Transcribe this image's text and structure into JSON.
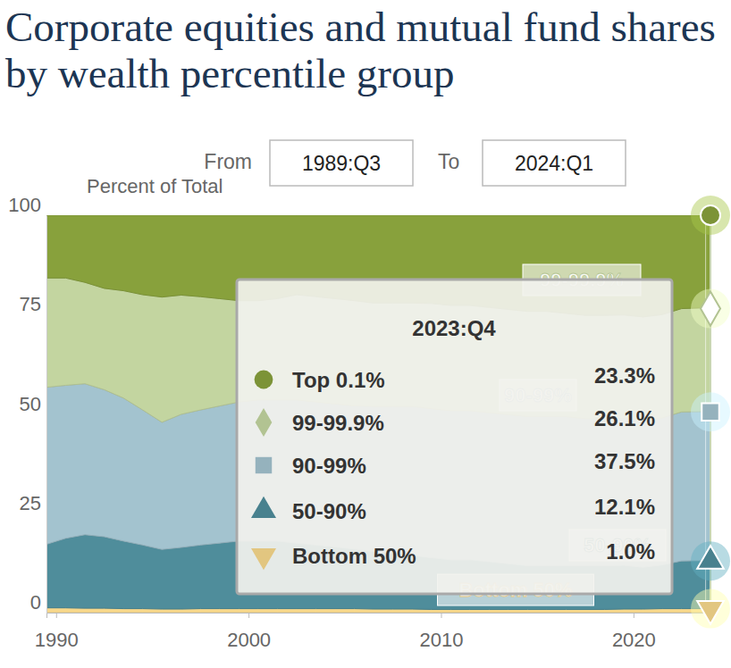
{
  "chart_data": {
    "type": "area",
    "title": "Corporate equities and mutual fund shares by wealth percentile group",
    "y_label": "Percent of Total",
    "from_label": "From",
    "from_value": "1989:Q3",
    "to_label": "To",
    "to_value": "2024:Q1",
    "stacked": true,
    "grid": false,
    "x": [
      1989.5,
      1990.5,
      1991.5,
      1992.5,
      1993.5,
      1994.5,
      1995.5,
      1996.5,
      1997.5,
      1998.5,
      1999.5,
      2000.5,
      2001.5,
      2002.5,
      2003.5,
      2004.5,
      2005.5,
      2006.5,
      2007.5,
      2008.5,
      2009.5,
      2010.5,
      2011.5,
      2012.5,
      2013.5,
      2014.5,
      2015.5,
      2016.5,
      2017.5,
      2018.5,
      2019.5,
      2020.5,
      2021.5,
      2022.5,
      2023.75,
      2024.0
    ],
    "xlim": [
      1989.5,
      2024.0
    ],
    "xticks": [
      1990,
      2000,
      2010,
      2020
    ],
    "ylim": [
      0,
      100
    ],
    "yticks": [
      0,
      25,
      50,
      75,
      100
    ],
    "series": [
      {
        "name": "Bottom 50%",
        "color": "#f7d88c",
        "marker": "triangle-down",
        "values": [
          1.2,
          1.2,
          1.1,
          1.1,
          1.0,
          1.0,
          0.9,
          0.9,
          1.0,
          1.0,
          1.0,
          1.0,
          1.0,
          1.0,
          1.0,
          1.0,
          1.0,
          0.9,
          0.9,
          0.9,
          0.8,
          0.8,
          0.8,
          0.8,
          0.8,
          0.8,
          0.8,
          0.8,
          0.8,
          0.8,
          0.9,
          0.9,
          1.0,
          1.0,
          1.0,
          1.0
        ]
      },
      {
        "name": "50-90%",
        "color": "#4f8d9b",
        "marker": "triangle-up",
        "values": [
          16.0,
          17.5,
          18.5,
          18.0,
          17.0,
          16.0,
          15.0,
          15.5,
          16.0,
          16.5,
          17.0,
          17.0,
          17.0,
          16.5,
          16.0,
          15.5,
          15.0,
          14.5,
          14.0,
          13.5,
          13.0,
          12.5,
          12.5,
          12.0,
          11.5,
          11.0,
          11.0,
          11.0,
          11.0,
          11.0,
          11.0,
          10.5,
          11.0,
          12.0,
          12.1,
          12.0
        ]
      },
      {
        "name": "90-99%",
        "color": "#a3c3cf",
        "marker": "square",
        "values": [
          39.5,
          38.5,
          38.0,
          37.0,
          36.0,
          34.0,
          32.0,
          33.5,
          34.0,
          34.5,
          35.0,
          35.5,
          35.5,
          36.0,
          36.0,
          36.0,
          36.0,
          36.5,
          37.0,
          37.5,
          37.5,
          37.5,
          37.5,
          37.5,
          37.5,
          37.5,
          37.5,
          37.5,
          37.0,
          37.0,
          37.0,
          37.0,
          37.0,
          37.5,
          37.5,
          37.5
        ]
      },
      {
        "name": "99-99.9%",
        "color": "#c3d5a0",
        "marker": "diamond",
        "values": [
          27.5,
          27.0,
          25.5,
          25.5,
          27.0,
          29.0,
          31.5,
          30.0,
          28.5,
          27.0,
          25.5,
          25.0,
          25.5,
          26.5,
          26.5,
          26.5,
          26.5,
          26.0,
          26.0,
          26.0,
          26.5,
          26.5,
          26.5,
          26.5,
          26.5,
          26.5,
          26.5,
          26.0,
          26.0,
          26.0,
          26.0,
          26.0,
          26.0,
          26.0,
          26.1,
          26.0
        ]
      },
      {
        "name": "Top 0.1%",
        "color": "#88a13c",
        "marker": "circle",
        "values": [
          15.8,
          15.8,
          16.9,
          18.4,
          19.0,
          20.0,
          20.6,
          20.1,
          20.5,
          21.0,
          21.5,
          21.5,
          21.0,
          20.0,
          20.5,
          21.0,
          21.5,
          22.1,
          22.1,
          22.1,
          22.2,
          22.7,
          22.7,
          23.2,
          23.7,
          24.2,
          24.2,
          24.7,
          25.2,
          25.2,
          25.1,
          25.6,
          25.0,
          23.5,
          23.3,
          23.5
        ]
      }
    ],
    "tooltip": {
      "title": "2023:Q4",
      "x": 2023.75,
      "values": [
        23.3,
        26.1,
        37.5,
        12.1,
        1.0
      ],
      "value_labels": [
        "23.3%",
        "26.1%",
        "37.5%",
        "12.1%",
        "1.0%"
      ]
    }
  }
}
